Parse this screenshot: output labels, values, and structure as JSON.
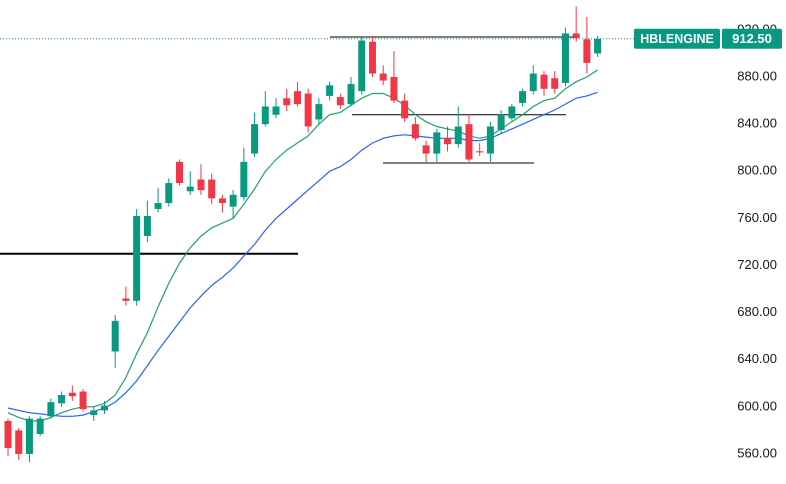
{
  "chart_data": {
    "type": "candlestick",
    "symbol": "HBLENGINE",
    "last_price": {
      "value": 912.5,
      "label": "912.50"
    },
    "up_color": "#089981",
    "down_color": "#f23645",
    "open": [
      588,
      580,
      560,
      577,
      592,
      603,
      612,
      613,
      593,
      597,
      647,
      692,
      690,
      745,
      768,
      773,
      808,
      783,
      793,
      793,
      777,
      770,
      778,
      815,
      840,
      848,
      862,
      868,
      866,
      844,
      864,
      863,
      857,
      868,
      910,
      883,
      880,
      860,
      840,
      822,
      815,
      828,
      823,
      840,
      817,
      815,
      835,
      845,
      858,
      868,
      882,
      879,
      875,
      917,
      912,
      900
    ],
    "high": [
      590,
      582,
      592,
      592,
      607,
      613,
      618,
      615,
      600,
      605,
      678,
      702,
      768,
      775,
      786,
      794,
      810,
      800,
      806,
      798,
      780,
      784,
      820,
      850,
      868,
      862,
      870,
      876,
      870,
      862,
      876,
      866,
      880,
      914,
      915,
      890,
      902,
      866,
      846,
      826,
      836,
      838,
      855,
      848,
      824,
      842,
      852,
      857,
      870,
      890,
      885,
      885,
      922,
      940,
      931,
      915
    ],
    "low": [
      558,
      555,
      553,
      575,
      590,
      600,
      605,
      596,
      588,
      594,
      633,
      686,
      686,
      740,
      765,
      770,
      788,
      780,
      780,
      772,
      765,
      760,
      775,
      812,
      838,
      845,
      851,
      855,
      833,
      840,
      860,
      853,
      855,
      865,
      880,
      873,
      858,
      842,
      826,
      807,
      808,
      817,
      820,
      808,
      813,
      808,
      832,
      843,
      855,
      865,
      864,
      866,
      872,
      910,
      883,
      897
    ],
    "close": [
      565,
      560,
      590,
      590,
      604,
      610,
      609,
      598,
      597,
      601,
      673,
      690,
      762,
      762,
      773,
      790,
      790,
      787,
      784,
      777,
      773,
      780,
      808,
      840,
      855,
      855,
      856,
      857,
      838,
      857,
      873,
      856,
      874,
      911,
      883,
      877,
      860,
      845,
      828,
      815,
      833,
      823,
      838,
      810,
      816,
      838,
      848,
      855,
      868,
      883,
      870,
      870,
      917,
      913,
      892,
      912.5
    ],
    "moving_averages": [
      {
        "color": "#22a06b",
        "values": [
          595,
          591,
          588,
          588,
          591,
          595,
          598,
          600,
          600,
          603,
          610,
          625,
          645,
          663,
          685,
          705,
          722,
          735,
          745,
          752,
          756,
          760,
          772,
          785,
          800,
          810,
          818,
          824,
          830,
          840,
          848,
          850,
          856,
          862,
          866,
          866,
          862,
          856,
          848,
          842,
          838,
          836,
          834,
          830,
          828,
          830,
          836,
          842,
          848,
          855,
          860,
          862,
          870,
          876,
          880,
          886
        ]
      },
      {
        "color": "#2962ff",
        "values": [
          599,
          597,
          595,
          594,
          593,
          592,
          592,
          593,
          596,
          599,
          604,
          612,
          622,
          635,
          648,
          660,
          672,
          684,
          694,
          703,
          710,
          718,
          728,
          738,
          750,
          760,
          768,
          776,
          784,
          792,
          800,
          804,
          810,
          818,
          824,
          828,
          830,
          831,
          830,
          829,
          828,
          828,
          828,
          826,
          826,
          828,
          832,
          836,
          840,
          844,
          848,
          852,
          857,
          862,
          864,
          867
        ]
      }
    ],
    "levels": [
      730,
      914,
      848,
      807
    ],
    "ylim": [
      534.5,
      945.4
    ],
    "yticks": [
      {
        "value": 560,
        "label": "560.00"
      },
      {
        "value": 600,
        "label": "600.00"
      },
      {
        "value": 640,
        "label": "640.00"
      },
      {
        "value": 680,
        "label": "680.00"
      },
      {
        "value": 720,
        "label": "720.00"
      },
      {
        "value": 760,
        "label": "760.00"
      },
      {
        "value": 800,
        "label": "800.00"
      },
      {
        "value": 840,
        "label": "840.00"
      },
      {
        "value": 880,
        "label": "880.00"
      },
      {
        "value": 920,
        "label": "920.00"
      }
    ]
  }
}
